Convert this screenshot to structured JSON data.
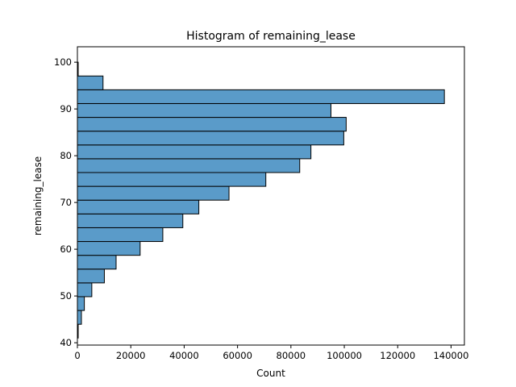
{
  "chart_data": {
    "type": "bar",
    "orientation": "horizontal",
    "title": "Histogram of remaining_lease",
    "xlabel": "Count",
    "ylabel": "remaining_lease",
    "xlim": [
      0,
      145000
    ],
    "ylim": [
      39.5,
      103.3
    ],
    "x_ticks": [
      0,
      20000,
      40000,
      60000,
      80000,
      100000,
      120000,
      140000
    ],
    "x_tick_labels": [
      "0",
      "20000",
      "40000",
      "60000",
      "80000",
      "100000",
      "120000",
      "140000"
    ],
    "y_ticks": [
      40,
      50,
      60,
      70,
      80,
      90,
      100
    ],
    "y_tick_labels": [
      "40",
      "50",
      "60",
      "70",
      "80",
      "90",
      "100"
    ],
    "bin_width": 2.95,
    "bins": [
      {
        "start": 41.0,
        "count": 300
      },
      {
        "start": 43.95,
        "count": 1500
      },
      {
        "start": 46.9,
        "count": 2600
      },
      {
        "start": 49.85,
        "count": 5400
      },
      {
        "start": 52.8,
        "count": 10100
      },
      {
        "start": 55.75,
        "count": 14500
      },
      {
        "start": 58.7,
        "count": 23500
      },
      {
        "start": 61.65,
        "count": 32000
      },
      {
        "start": 64.6,
        "count": 39500
      },
      {
        "start": 67.55,
        "count": 45500
      },
      {
        "start": 70.5,
        "count": 56800
      },
      {
        "start": 73.45,
        "count": 70600
      },
      {
        "start": 76.4,
        "count": 83300
      },
      {
        "start": 79.35,
        "count": 87500
      },
      {
        "start": 82.3,
        "count": 99800
      },
      {
        "start": 85.25,
        "count": 100700
      },
      {
        "start": 88.2,
        "count": 95000
      },
      {
        "start": 91.15,
        "count": 137500
      },
      {
        "start": 94.1,
        "count": 9600
      },
      {
        "start": 97.05,
        "count": 300
      }
    ],
    "grid": false,
    "legend": "none",
    "bar_color": "#5a9bc9",
    "edge_color": "#000000"
  }
}
